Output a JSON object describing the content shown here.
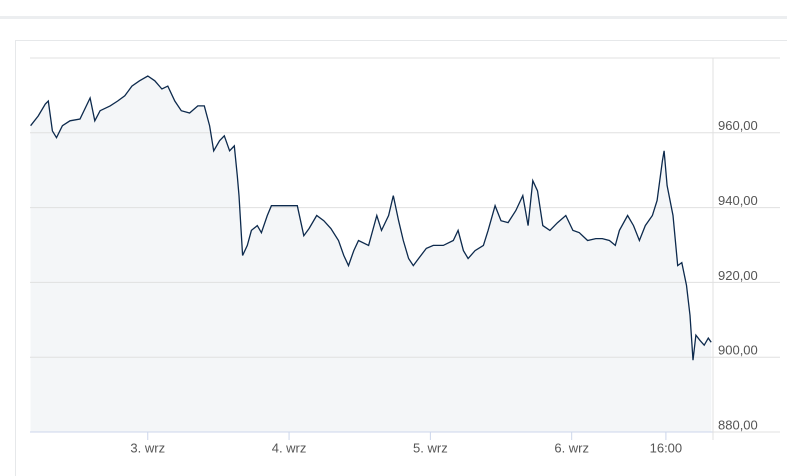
{
  "chart_data": {
    "type": "area",
    "color": "#0d2a4d",
    "fill": "#f4f6f8",
    "grid": true,
    "x": [
      -19.9,
      -18.6,
      -17.4,
      -16.9,
      -16.2,
      -15.5,
      -14.5,
      -13.2,
      -11.5,
      -9.8,
      -9.0,
      -8.1,
      -6.4,
      -5.1,
      -3.9,
      -2.7,
      -1.4,
      0,
      1.2,
      2.4,
      3.4,
      4.6,
      5.7,
      7.1,
      8.5,
      9.6,
      10.5,
      11.2,
      12.2,
      13.0,
      13.9,
      14.7,
      15.2,
      15.5,
      16.1,
      16.9,
      17.6,
      18.6,
      19.3,
      20.3,
      21.0,
      22.3,
      24.0,
      25.4,
      26.5,
      27.4,
      28.7,
      29.9,
      31.1,
      32.4,
      33.3,
      34.1,
      35.0,
      35.8,
      37.5,
      38.9,
      39.7,
      40.9,
      41.7,
      42.6,
      43.4,
      44.3,
      45.1,
      46.0,
      47.3,
      48.5,
      50.2,
      51.9,
      52.7,
      53.6,
      54.4,
      55.6,
      57.0,
      57.8,
      59.0,
      60.0,
      61.2,
      62.5,
      63.7,
      64.6,
      65.4,
      66.2,
      67.1,
      68.3,
      69.6,
      71.0,
      72.2,
      73.3,
      74.7,
      76.1,
      77.2,
      78.4,
      79.4,
      80.1,
      81.5,
      82.5,
      83.5,
      84.5,
      85.7,
      86.5,
      87.4,
      87.7,
      88.2,
      89.2,
      90.0,
      90.7,
      91.5,
      92.1,
      92.6,
      93.1,
      93.8,
      94.5,
      95.2,
      95.7
    ],
    "values": [
      961.9,
      964.5,
      967.7,
      968.5,
      960.5,
      958.7,
      961.9,
      963.2,
      963.7,
      969.3,
      963.2,
      965.9,
      967.2,
      968.5,
      969.9,
      972.5,
      973.9,
      975.2,
      973.9,
      971.7,
      972.5,
      968.5,
      965.9,
      965.3,
      967.2,
      967.2,
      961.9,
      955.2,
      957.9,
      959.2,
      955.2,
      956.5,
      948.5,
      943.2,
      927.2,
      929.9,
      933.9,
      935.2,
      933.3,
      937.9,
      940.5,
      940.5,
      940.5,
      940.5,
      932.5,
      934.4,
      937.9,
      936.5,
      934.4,
      931.2,
      927.2,
      924.5,
      928.5,
      931.2,
      929.9,
      937.9,
      933.9,
      937.9,
      943.2,
      936.5,
      931.2,
      926.4,
      924.5,
      926.4,
      929.1,
      929.9,
      929.9,
      931.2,
      933.9,
      928.5,
      926.4,
      928.5,
      929.9,
      933.9,
      940.5,
      936.5,
      936.0,
      939.2,
      943.2,
      935.2,
      947.2,
      944.5,
      935.2,
      933.9,
      936.0,
      937.9,
      933.9,
      933.3,
      931.2,
      931.7,
      931.7,
      931.2,
      929.9,
      933.9,
      937.9,
      935.2,
      931.2,
      935.2,
      937.9,
      941.9,
      952.5,
      955.2,
      945.9,
      937.9,
      924.5,
      925.3,
      919.2,
      911.2,
      899.2,
      905.9,
      904.5,
      903.2,
      905.1,
      904.0
    ],
    "xlim": [
      -20,
      96
    ],
    "xticks": [
      {
        "value": 0,
        "label": "3. wrz"
      },
      {
        "value": 24,
        "label": "4. wrz"
      },
      {
        "value": 48,
        "label": "5. wrz"
      },
      {
        "value": 72,
        "label": "6. wrz"
      },
      {
        "value": 88,
        "label": "16:00"
      }
    ],
    "ylim": [
      880,
      980
    ],
    "yticks": [
      {
        "value": 880,
        "label": "880,00"
      },
      {
        "value": 900,
        "label": "900,00"
      },
      {
        "value": 920,
        "label": "920,00"
      },
      {
        "value": 940,
        "label": "940,00"
      },
      {
        "value": 960,
        "label": "960,00"
      },
      980
    ]
  }
}
